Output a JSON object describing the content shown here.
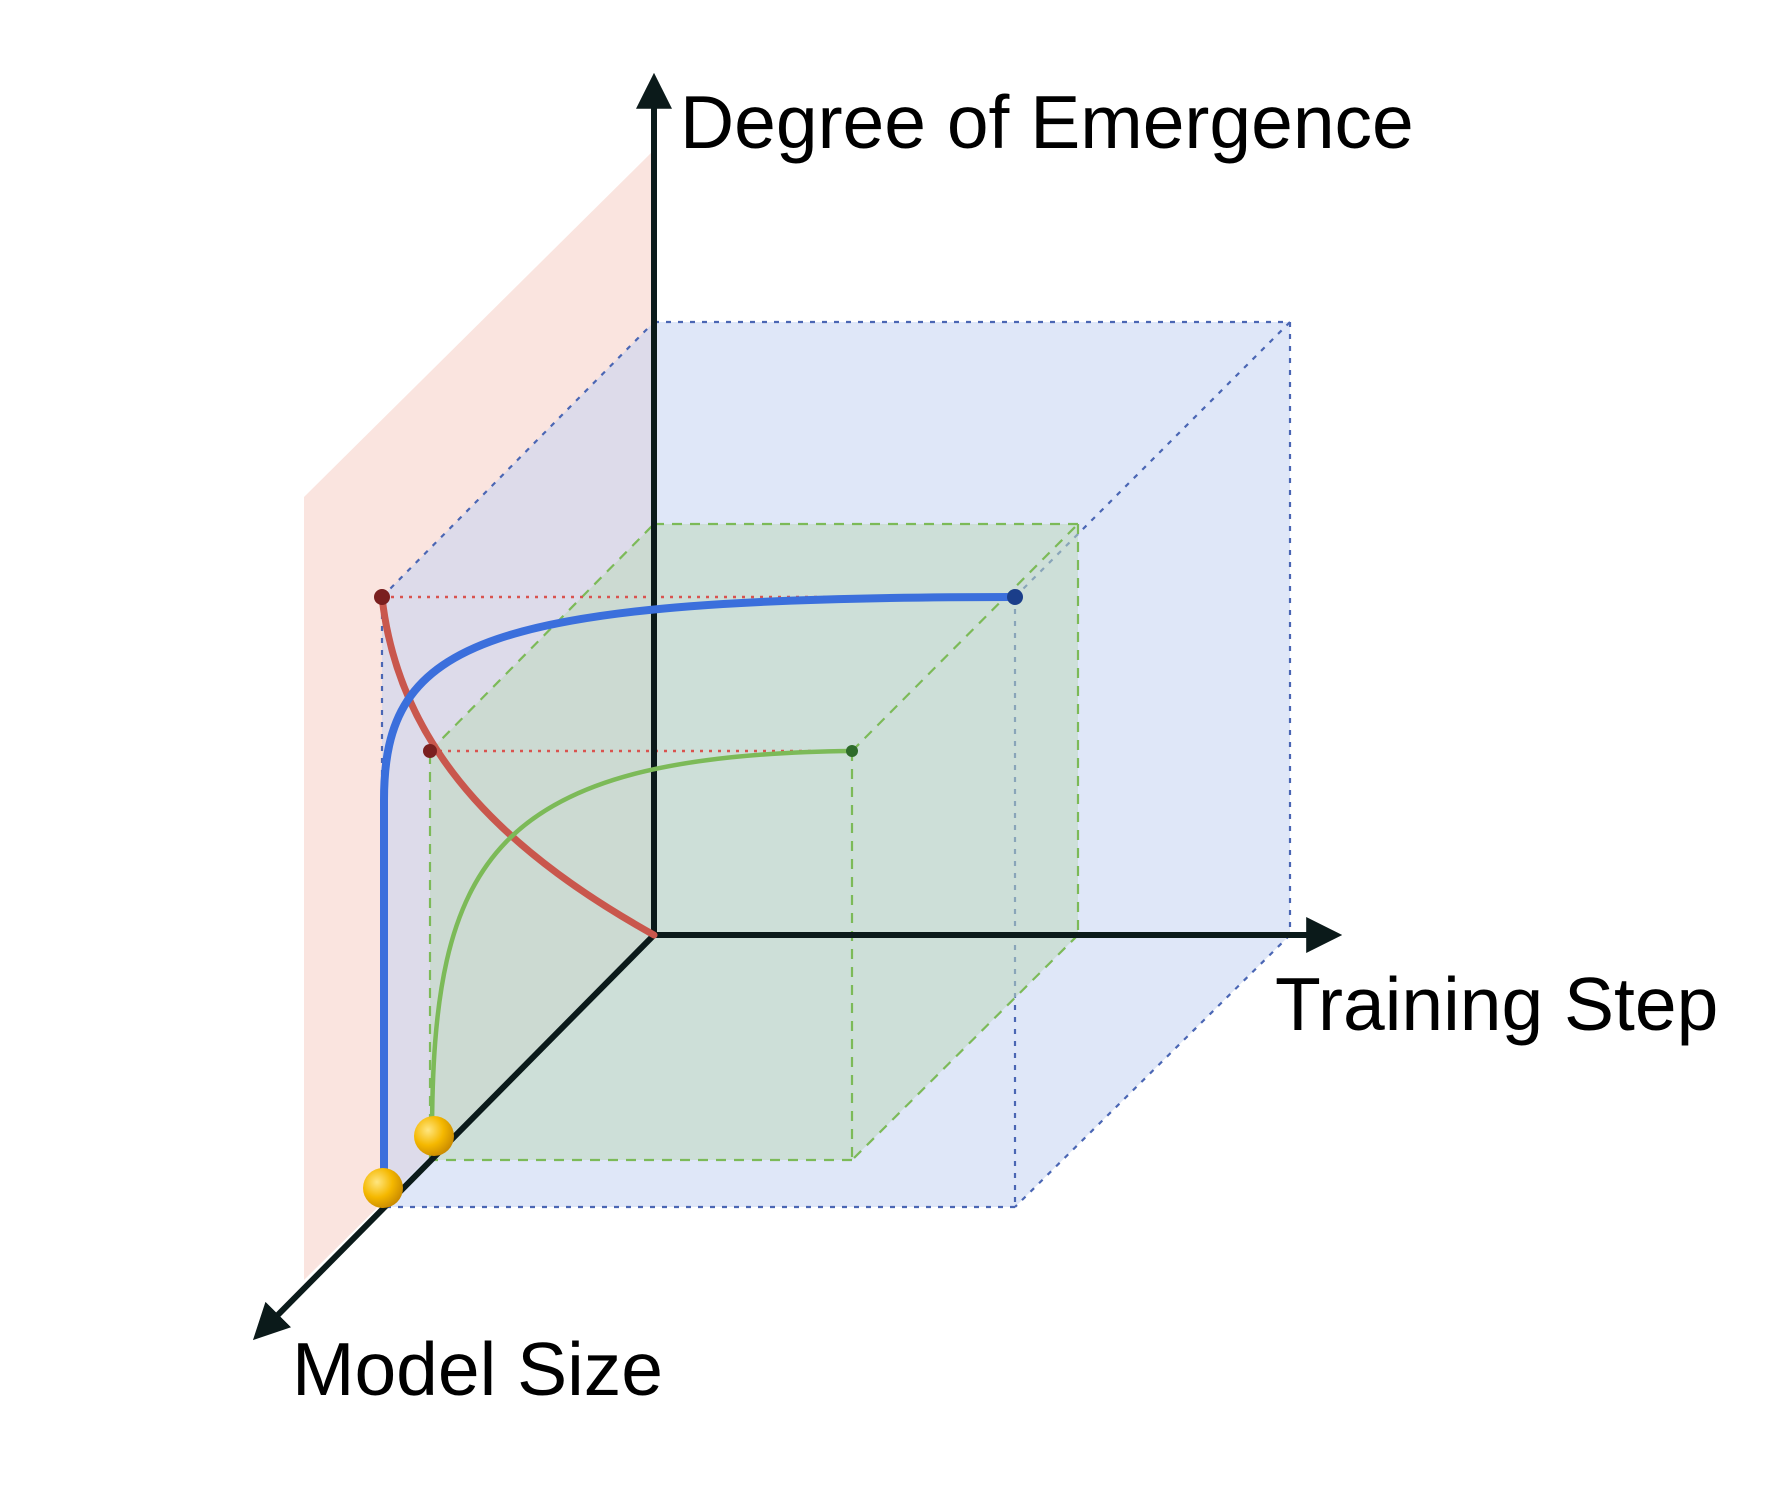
{
  "axes": {
    "vertical_label": "Degree of Emergence",
    "horizontal_label": "Training Step",
    "depth_label": "Model Size"
  },
  "colors": {
    "background": "#ffffff",
    "axis": "#0b1a1a",
    "large_box_fill": "#c5d4f2",
    "small_box_fill": "#bed8be",
    "side_plane_fill": "#f4c4b8",
    "blue_curve": "#3b6fdc",
    "green_curve": "#7cba58",
    "red_curve": "#c9574d",
    "start_points": "#f5b800"
  },
  "curves": [
    {
      "name": "large-model-curve",
      "color": "blue"
    },
    {
      "name": "small-model-curve",
      "color": "green"
    },
    {
      "name": "model-size-projection-curve",
      "color": "red"
    }
  ]
}
